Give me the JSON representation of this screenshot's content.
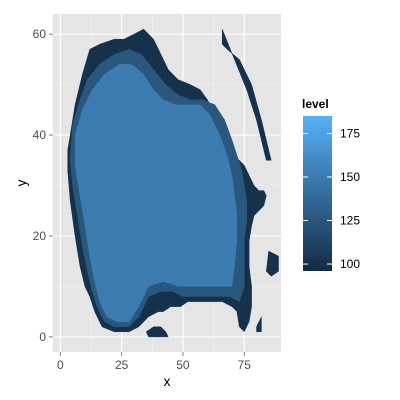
{
  "chart_data": {
    "type": "filled-contour",
    "xlabel": "x",
    "ylabel": "y",
    "xlim": [
      -3,
      90
    ],
    "ylim": [
      -3,
      64
    ],
    "x_ticks": [
      0,
      25,
      50,
      75
    ],
    "y_ticks": [
      0,
      20,
      40,
      60
    ],
    "grid": true,
    "legend": {
      "title": "level",
      "position": "right",
      "range": [
        96,
        185
      ],
      "breaks": [
        100,
        125,
        150,
        175
      ],
      "colors": {
        "low": "#132B43",
        "high": "#56B1F7"
      }
    },
    "regions": [
      {
        "level": 100,
        "polygon": [
          [
            4,
            40
          ],
          [
            6,
            46
          ],
          [
            9,
            52
          ],
          [
            12,
            57
          ],
          [
            16,
            58
          ],
          [
            22,
            59
          ],
          [
            26,
            59
          ],
          [
            30,
            60
          ],
          [
            34,
            61
          ],
          [
            38,
            59
          ],
          [
            41,
            56
          ],
          [
            44,
            53
          ],
          [
            48,
            51
          ],
          [
            53,
            50
          ],
          [
            57,
            49
          ],
          [
            60,
            47
          ],
          [
            62,
            45
          ],
          [
            64,
            43
          ],
          [
            67,
            40
          ],
          [
            71,
            36
          ],
          [
            75,
            34
          ],
          [
            77,
            32
          ],
          [
            79,
            30
          ],
          [
            81,
            29
          ],
          [
            83,
            29
          ],
          [
            84,
            28
          ],
          [
            83,
            26
          ],
          [
            81,
            25
          ],
          [
            79,
            24
          ],
          [
            78,
            22
          ],
          [
            77,
            19
          ],
          [
            77,
            14
          ],
          [
            78,
            10
          ],
          [
            78,
            6
          ],
          [
            77,
            3
          ],
          [
            75,
            1
          ],
          [
            73,
            2
          ],
          [
            72,
            5
          ],
          [
            70,
            6
          ],
          [
            66,
            7
          ],
          [
            62,
            7
          ],
          [
            57,
            7
          ],
          [
            52,
            7
          ],
          [
            49,
            6
          ],
          [
            45,
            6
          ],
          [
            42,
            5
          ],
          [
            40,
            5
          ],
          [
            36,
            4
          ],
          [
            32,
            2
          ],
          [
            28,
            1
          ],
          [
            22,
            1
          ],
          [
            17,
            2
          ],
          [
            14,
            5
          ],
          [
            12,
            8
          ],
          [
            10,
            10
          ],
          [
            8,
            14
          ],
          [
            6,
            20
          ],
          [
            4,
            27
          ],
          [
            3,
            33
          ],
          [
            3,
            37
          ]
        ]
      },
      {
        "level": 100,
        "polygon": [
          [
            66,
            61
          ],
          [
            71,
            55
          ],
          [
            76,
            49
          ],
          [
            80,
            43
          ],
          [
            84,
            35
          ],
          [
            86,
            35
          ],
          [
            82,
            43
          ],
          [
            78,
            50
          ],
          [
            73,
            55
          ],
          [
            68,
            57
          ],
          [
            66,
            58
          ]
        ]
      },
      {
        "level": 100,
        "polygon": [
          [
            85,
            17
          ],
          [
            89,
            16
          ],
          [
            89,
            13
          ],
          [
            86,
            12
          ],
          [
            84,
            13
          ]
        ]
      },
      {
        "level": 100,
        "polygon": [
          [
            35,
            1
          ],
          [
            38,
            2
          ],
          [
            41,
            2
          ],
          [
            43,
            1
          ],
          [
            44,
            0
          ],
          [
            42,
            0
          ],
          [
            40,
            0
          ],
          [
            36,
            0
          ]
        ]
      },
      {
        "level": 100,
        "polygon": [
          [
            80,
            2
          ],
          [
            82,
            4
          ],
          [
            82,
            1
          ],
          [
            80,
            1
          ]
        ]
      },
      {
        "level": 125,
        "polygon": [
          [
            5,
            42
          ],
          [
            8,
            47
          ],
          [
            11,
            51
          ],
          [
            16,
            54
          ],
          [
            22,
            56
          ],
          [
            28,
            57
          ],
          [
            33,
            56
          ],
          [
            38,
            53
          ],
          [
            43,
            50
          ],
          [
            48,
            48
          ],
          [
            53,
            47
          ],
          [
            58,
            47
          ],
          [
            63,
            46
          ],
          [
            67,
            43
          ],
          [
            70,
            39
          ],
          [
            72,
            36
          ],
          [
            74,
            33
          ],
          [
            75,
            30
          ],
          [
            76,
            27
          ],
          [
            76,
            23
          ],
          [
            75,
            19
          ],
          [
            75,
            14
          ],
          [
            75,
            10
          ],
          [
            73,
            7
          ],
          [
            69,
            8
          ],
          [
            64,
            8
          ],
          [
            59,
            8
          ],
          [
            54,
            8
          ],
          [
            50,
            8
          ],
          [
            46,
            9
          ],
          [
            41,
            9
          ],
          [
            36,
            8
          ],
          [
            32,
            4
          ],
          [
            28,
            2
          ],
          [
            22,
            2
          ],
          [
            18,
            3
          ],
          [
            15,
            6
          ],
          [
            13,
            9
          ],
          [
            11,
            13
          ],
          [
            9,
            18
          ],
          [
            7,
            24
          ],
          [
            5,
            30
          ],
          [
            4,
            35
          ]
        ]
      },
      {
        "level": 150,
        "polygon": [
          [
            6,
            40
          ],
          [
            9,
            45
          ],
          [
            13,
            49
          ],
          [
            18,
            52
          ],
          [
            24,
            54
          ],
          [
            29,
            54
          ],
          [
            34,
            52
          ],
          [
            38,
            49
          ],
          [
            42,
            47
          ],
          [
            47,
            46
          ],
          [
            52,
            46
          ],
          [
            57,
            46
          ],
          [
            61,
            44
          ],
          [
            65,
            40
          ],
          [
            68,
            36
          ],
          [
            70,
            32
          ],
          [
            71,
            28
          ],
          [
            72,
            24
          ],
          [
            72,
            19
          ],
          [
            71,
            14
          ],
          [
            70,
            10
          ],
          [
            66,
            10
          ],
          [
            60,
            10
          ],
          [
            54,
            10
          ],
          [
            48,
            10
          ],
          [
            42,
            11
          ],
          [
            36,
            10
          ],
          [
            32,
            6
          ],
          [
            28,
            3
          ],
          [
            23,
            3
          ],
          [
            19,
            4
          ],
          [
            16,
            7
          ],
          [
            14,
            11
          ],
          [
            12,
            16
          ],
          [
            10,
            22
          ],
          [
            8,
            28
          ],
          [
            6,
            34
          ]
        ]
      }
    ]
  }
}
